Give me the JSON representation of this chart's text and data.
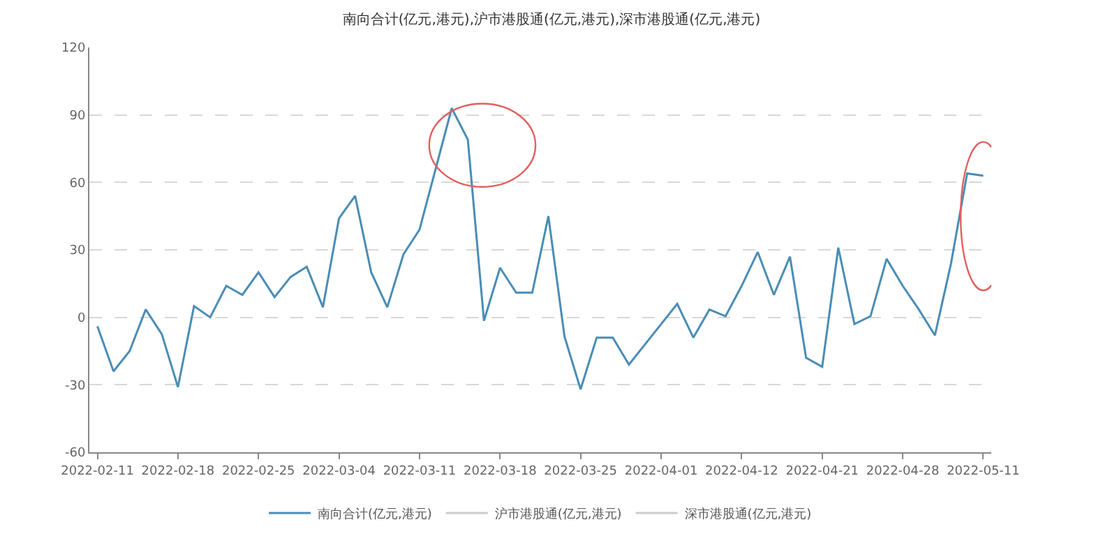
{
  "chart_data": {
    "type": "line",
    "title": "南向合计(亿元,港元),沪市港股通(亿元,港元),深市港股通(亿元,港元)",
    "categories": [
      "2022-02-11",
      null,
      null,
      null,
      null,
      "2022-02-18",
      null,
      null,
      null,
      null,
      "2022-02-25",
      null,
      null,
      null,
      null,
      "2022-03-04",
      null,
      null,
      null,
      null,
      "2022-03-11",
      null,
      null,
      null,
      null,
      "2022-03-18",
      null,
      null,
      null,
      null,
      "2022-03-25",
      null,
      null,
      null,
      null,
      "2022-04-01",
      null,
      null,
      null,
      null,
      "2022-04-12",
      null,
      null,
      null,
      null,
      "2022-04-21",
      null,
      null,
      null,
      null,
      "2022-04-28",
      null,
      null,
      null,
      null,
      "2022-05-11"
    ],
    "series": [
      {
        "name": "南向合计(亿元,港元)",
        "color": "#4a8db5",
        "values": [
          -4,
          -24,
          -15,
          3.5,
          -7.5,
          -31,
          5,
          0,
          14,
          10,
          20,
          9,
          18,
          22.5,
          4.5,
          44,
          54,
          20,
          4.5,
          28,
          39,
          66,
          93,
          79,
          -1.5,
          22,
          11,
          11,
          45,
          -8.5,
          -32,
          -9,
          -9,
          -21,
          -12,
          -3,
          6,
          -9,
          3.5,
          0.5,
          14,
          29,
          10,
          27,
          -18,
          -22,
          31,
          -3,
          0.5,
          26,
          14,
          3.5,
          -8,
          24,
          64,
          63
        ]
      },
      {
        "name": "沪市港股通(亿元,港元)",
        "color": "#cccccc",
        "values": [
          null,
          null,
          null,
          null,
          null,
          null,
          null,
          null,
          null,
          null,
          null,
          null,
          null,
          null,
          null,
          null,
          null,
          null,
          null,
          null,
          null,
          null,
          null,
          null,
          null,
          null,
          null,
          null,
          null,
          null,
          null,
          null,
          null,
          null,
          null,
          null,
          null,
          null,
          null,
          null,
          null,
          null,
          null,
          null,
          null,
          null,
          null,
          null,
          null,
          null,
          null,
          null,
          null,
          null,
          null,
          null
        ]
      },
      {
        "name": "深市港股通(亿元,港元)",
        "color": "#cccccc",
        "values": [
          null,
          null,
          null,
          null,
          null,
          null,
          null,
          null,
          null,
          null,
          null,
          null,
          null,
          null,
          null,
          null,
          null,
          null,
          null,
          null,
          null,
          null,
          null,
          null,
          null,
          null,
          null,
          null,
          null,
          null,
          null,
          null,
          null,
          null,
          null,
          null,
          null,
          null,
          null,
          null,
          null,
          null,
          null,
          null,
          null,
          null,
          null,
          null,
          null,
          null,
          null,
          null,
          null,
          null,
          null,
          null
        ]
      }
    ],
    "ylim": [
      -60,
      120
    ],
    "yticks": [
      -60,
      -30,
      0,
      30,
      60,
      90,
      120
    ],
    "grid": "y",
    "legend": "bottom",
    "marker": "none",
    "line_style": "solid"
  }
}
